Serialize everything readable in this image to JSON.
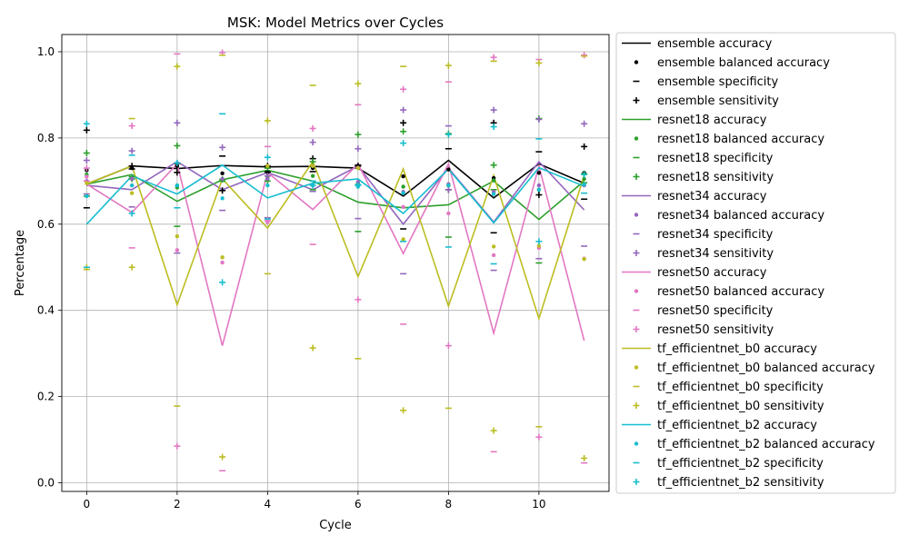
{
  "chart_data": {
    "type": "line",
    "title": "MSK: Model Metrics over Cycles",
    "xlabel": "Cycle",
    "ylabel": "Percentage",
    "xlim": [
      -0.55,
      11.55
    ],
    "ylim": [
      -0.02,
      1.04
    ],
    "xticks": [
      0,
      2,
      4,
      6,
      8,
      10
    ],
    "yticks": [
      0.0,
      0.2,
      0.4,
      0.6,
      0.8,
      1.0
    ],
    "ytick_labels": [
      "0.0",
      "0.2",
      "0.4",
      "0.6",
      "0.8",
      "1.0"
    ],
    "grid": true,
    "legend_position": "outside-right",
    "x": [
      0,
      1,
      2,
      3,
      4,
      5,
      6,
      7,
      8,
      9,
      10,
      11
    ],
    "models": [
      {
        "name": "ensemble",
        "color": "#000000",
        "accuracy": [
          0.693,
          0.735,
          0.729,
          0.736,
          0.733,
          0.734,
          0.73,
          0.665,
          0.748,
          0.661,
          0.74,
          0.695
        ],
        "balanced_accuracy": [
          0.725,
          0.73,
          0.735,
          0.718,
          0.72,
          0.73,
          0.735,
          0.711,
          0.727,
          0.707,
          0.719,
          0.719
        ],
        "specificity": [
          0.638,
          0.728,
          0.741,
          0.758,
          0.721,
          0.722,
          0.737,
          0.589,
          0.775,
          0.58,
          0.768,
          0.658
        ],
        "sensitivity": [
          0.818,
          0.735,
          0.72,
          0.678,
          0.735,
          0.752,
          0.735,
          0.835,
          0.68,
          0.835,
          0.668,
          0.78
        ]
      },
      {
        "name": "resnet18",
        "color": "#2ca02c",
        "accuracy": [
          0.693,
          0.715,
          0.653,
          0.703,
          0.725,
          0.7,
          0.651,
          0.638,
          0.645,
          0.7,
          0.611,
          0.7
        ],
        "balanced_accuracy": [
          0.715,
          0.705,
          0.685,
          0.702,
          0.71,
          0.712,
          0.695,
          0.687,
          0.69,
          0.702,
          0.68,
          0.705
        ],
        "specificity": [
          0.665,
          0.71,
          0.595,
          0.7,
          0.73,
          0.68,
          0.583,
          0.56,
          0.57,
          0.68,
          0.51,
          0.696
        ],
        "sensitivity": [
          0.765,
          0.705,
          0.782,
          0.704,
          0.7,
          0.745,
          0.808,
          0.815,
          0.81,
          0.737,
          0.845,
          0.717
        ]
      },
      {
        "name": "resnet34",
        "color": "#9467bd",
        "accuracy": [
          0.69,
          0.68,
          0.745,
          0.68,
          0.72,
          0.68,
          0.735,
          0.6,
          0.73,
          0.605,
          0.745,
          0.633
        ],
        "balanced_accuracy": [
          0.7,
          0.705,
          0.69,
          0.705,
          0.705,
          0.735,
          0.698,
          0.675,
          0.693,
          0.675,
          0.69,
          0.69
        ],
        "specificity": [
          0.67,
          0.64,
          0.533,
          0.632,
          0.615,
          0.676,
          0.613,
          0.485,
          0.828,
          0.493,
          0.52,
          0.549
        ],
        "sensitivity": [
          0.748,
          0.77,
          0.835,
          0.778,
          0.712,
          0.79,
          0.775,
          0.865,
          0.68,
          0.865,
          0.843,
          0.833
        ]
      },
      {
        "name": "resnet50",
        "color": "#e377c2",
        "accuracy": [
          0.693,
          0.627,
          0.74,
          0.318,
          0.72,
          0.634,
          0.74,
          0.532,
          0.74,
          0.347,
          0.735,
          0.33
        ],
        "balanced_accuracy": [
          0.71,
          0.69,
          0.54,
          0.511,
          0.605,
          0.69,
          0.731,
          0.64,
          0.625,
          0.528,
          0.545,
          0.52
        ],
        "specificity": [
          0.7,
          0.545,
          0.995,
          0.028,
          0.78,
          0.553,
          0.877,
          0.368,
          0.93,
          0.072,
          0.982,
          0.046
        ],
        "sensitivity": [
          0.73,
          0.828,
          0.085,
          0.998,
          0.608,
          0.822,
          0.425,
          0.913,
          0.318,
          0.987,
          0.106,
          0.992
        ]
      },
      {
        "name": "tf_efficientnet_b0",
        "color": "#bcbd22",
        "accuracy": [
          0.693,
          0.735,
          0.413,
          0.705,
          0.591,
          0.745,
          0.478,
          0.728,
          0.41,
          0.713,
          0.381,
          0.713
        ],
        "balanced_accuracy": [
          0.695,
          0.672,
          0.572,
          0.523,
          0.735,
          0.735,
          0.73,
          0.565,
          0.69,
          0.548,
          0.55,
          0.519
        ],
        "specificity": [
          0.495,
          0.845,
          0.178,
          0.992,
          0.485,
          0.922,
          0.288,
          0.966,
          0.173,
          0.978,
          0.13,
          0.99
        ],
        "sensitivity": [
          0.5,
          0.5,
          0.966,
          0.06,
          0.84,
          0.313,
          0.926,
          0.168,
          0.968,
          0.121,
          0.974,
          0.057
        ]
      },
      {
        "name": "tf_efficientnet_b2",
        "color": "#17becf",
        "accuracy": [
          0.6,
          0.712,
          0.67,
          0.737,
          0.661,
          0.695,
          0.705,
          0.625,
          0.728,
          0.603,
          0.731,
          0.688
        ],
        "balanced_accuracy": [
          0.665,
          0.69,
          0.69,
          0.66,
          0.69,
          0.69,
          0.687,
          0.672,
          0.69,
          0.67,
          0.68,
          0.692
        ],
        "specificity": [
          0.5,
          0.76,
          0.638,
          0.856,
          0.612,
          0.7,
          0.692,
          0.56,
          0.547,
          0.508,
          0.798,
          0.672
        ],
        "sensitivity": [
          0.833,
          0.625,
          0.742,
          0.465,
          0.755,
          0.69,
          0.69,
          0.788,
          0.808,
          0.826,
          0.56,
          0.715
        ]
      }
    ],
    "legend": [
      {
        "label": "ensemble accuracy",
        "kind": "line",
        "color": "#000000"
      },
      {
        "label": "ensemble balanced accuracy",
        "kind": "dot",
        "color": "#000000"
      },
      {
        "label": "ensemble specificity",
        "kind": "dash",
        "color": "#000000"
      },
      {
        "label": "ensemble sensitivity",
        "kind": "plus",
        "color": "#000000"
      },
      {
        "label": "resnet18 accuracy",
        "kind": "line",
        "color": "#2ca02c"
      },
      {
        "label": "resnet18 balanced accuracy",
        "kind": "dot",
        "color": "#2ca02c"
      },
      {
        "label": "resnet18 specificity",
        "kind": "dash",
        "color": "#2ca02c"
      },
      {
        "label": "resnet18 sensitivity",
        "kind": "plus",
        "color": "#2ca02c"
      },
      {
        "label": "resnet34 accuracy",
        "kind": "line",
        "color": "#9467bd"
      },
      {
        "label": "resnet34 balanced accuracy",
        "kind": "dot",
        "color": "#9467bd"
      },
      {
        "label": "resnet34 specificity",
        "kind": "dash",
        "color": "#9467bd"
      },
      {
        "label": "resnet34 sensitivity",
        "kind": "plus",
        "color": "#9467bd"
      },
      {
        "label": "resnet50 accuracy",
        "kind": "line",
        "color": "#e377c2"
      },
      {
        "label": "resnet50 balanced accuracy",
        "kind": "dot",
        "color": "#e377c2"
      },
      {
        "label": "resnet50 specificity",
        "kind": "dash",
        "color": "#e377c2"
      },
      {
        "label": "resnet50 sensitivity",
        "kind": "plus",
        "color": "#e377c2"
      },
      {
        "label": "tf_efficientnet_b0 accuracy",
        "kind": "line",
        "color": "#bcbd22"
      },
      {
        "label": "tf_efficientnet_b0 balanced accuracy",
        "kind": "dot",
        "color": "#bcbd22"
      },
      {
        "label": "tf_efficientnet_b0 specificity",
        "kind": "dash",
        "color": "#bcbd22"
      },
      {
        "label": "tf_efficientnet_b0 sensitivity",
        "kind": "plus",
        "color": "#bcbd22"
      },
      {
        "label": "tf_efficientnet_b2 accuracy",
        "kind": "line",
        "color": "#17becf"
      },
      {
        "label": "tf_efficientnet_b2 balanced accuracy",
        "kind": "dot",
        "color": "#17becf"
      },
      {
        "label": "tf_efficientnet_b2 specificity",
        "kind": "dash",
        "color": "#17becf"
      },
      {
        "label": "tf_efficientnet_b2 sensitivity",
        "kind": "plus",
        "color": "#17becf"
      }
    ]
  }
}
